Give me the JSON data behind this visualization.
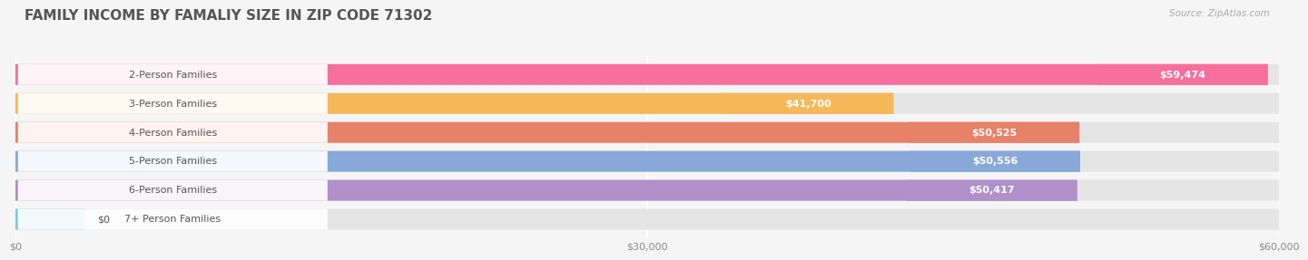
{
  "title": "FAMILY INCOME BY FAMALIY SIZE IN ZIP CODE 71302",
  "source": "Source: ZipAtlas.com",
  "categories": [
    "2-Person Families",
    "3-Person Families",
    "4-Person Families",
    "5-Person Families",
    "6-Person Families",
    "7+ Person Families"
  ],
  "values": [
    59474,
    41700,
    50525,
    50556,
    50417,
    0
  ],
  "bar_colors": [
    "#F76F9D",
    "#F5B85A",
    "#E8816A",
    "#88A8D8",
    "#B090C8",
    "#7ECDD4"
  ],
  "bar_labels": [
    "$59,474",
    "$41,700",
    "$50,525",
    "$50,556",
    "$50,417",
    "$0"
  ],
  "xlim": [
    0,
    60000
  ],
  "xticks": [
    0,
    30000,
    60000
  ],
  "xtick_labels": [
    "$0",
    "$30,000",
    "$60,000"
  ],
  "background_color": "#f5f5f5",
  "bar_bg_color": "#e5e5e5",
  "title_fontsize": 11,
  "label_fontsize": 8,
  "value_fontsize": 8,
  "source_fontsize": 7.5
}
